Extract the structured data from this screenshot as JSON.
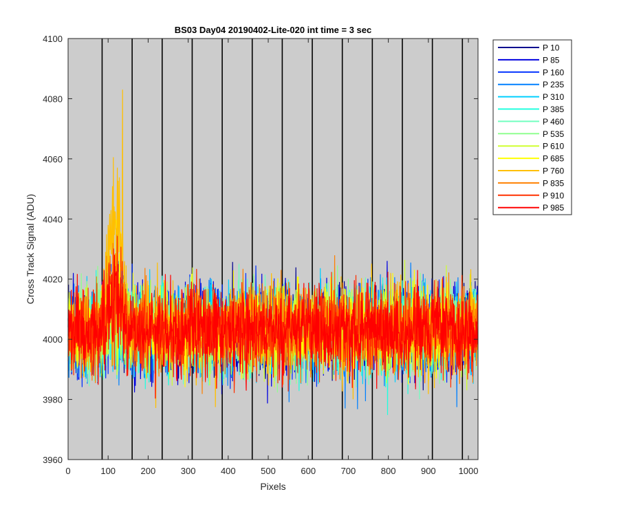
{
  "chart_data": {
    "type": "line",
    "title": "BS03 Day04 20190402-Lite-020 int time = 3 sec",
    "xlabel": "Pixels",
    "ylabel": "Cross Track Signal (ADU)",
    "xlim": [
      0,
      1024
    ],
    "ylim": [
      3960,
      4100
    ],
    "x_ticks": [
      "0",
      "100",
      "200",
      "300",
      "400",
      "500",
      "600",
      "700",
      "800",
      "900",
      "1000"
    ],
    "y_ticks": [
      "3960",
      "3980",
      "4000",
      "4020",
      "4040",
      "4060",
      "4080",
      "4100"
    ],
    "grid": false,
    "background_color": "#cccccc",
    "vertical_markers_x": [
      85,
      160,
      235,
      310,
      385,
      460,
      535,
      610,
      685,
      760,
      835,
      910,
      985
    ],
    "legend_position": "outside-top-right",
    "x_points": 1024,
    "signal_baseline": 4003,
    "noise_range_typical": [
      3985,
      4020
    ],
    "noise_range_extreme": [
      3970,
      4048
    ],
    "feature": {
      "x_range": [
        85,
        150
      ],
      "peak_series": "P 760",
      "peak_value": 4083
    },
    "series": [
      {
        "name": "P 10",
        "color": "#00008f"
      },
      {
        "name": "P 85",
        "color": "#0000df"
      },
      {
        "name": "P 160",
        "color": "#0030ff"
      },
      {
        "name": "P 235",
        "color": "#0080ff"
      },
      {
        "name": "P 310",
        "color": "#00cfff"
      },
      {
        "name": "P 385",
        "color": "#20ffdf"
      },
      {
        "name": "P 460",
        "color": "#70ffbf"
      },
      {
        "name": "P 535",
        "color": "#8fff8f"
      },
      {
        "name": "P 610",
        "color": "#cfff30"
      },
      {
        "name": "P 685",
        "color": "#ffff00"
      },
      {
        "name": "P 760",
        "color": "#ffbf00"
      },
      {
        "name": "P 835",
        "color": "#ff8000"
      },
      {
        "name": "P 910",
        "color": "#ff3000"
      },
      {
        "name": "P 985",
        "color": "#ff0000"
      }
    ]
  }
}
